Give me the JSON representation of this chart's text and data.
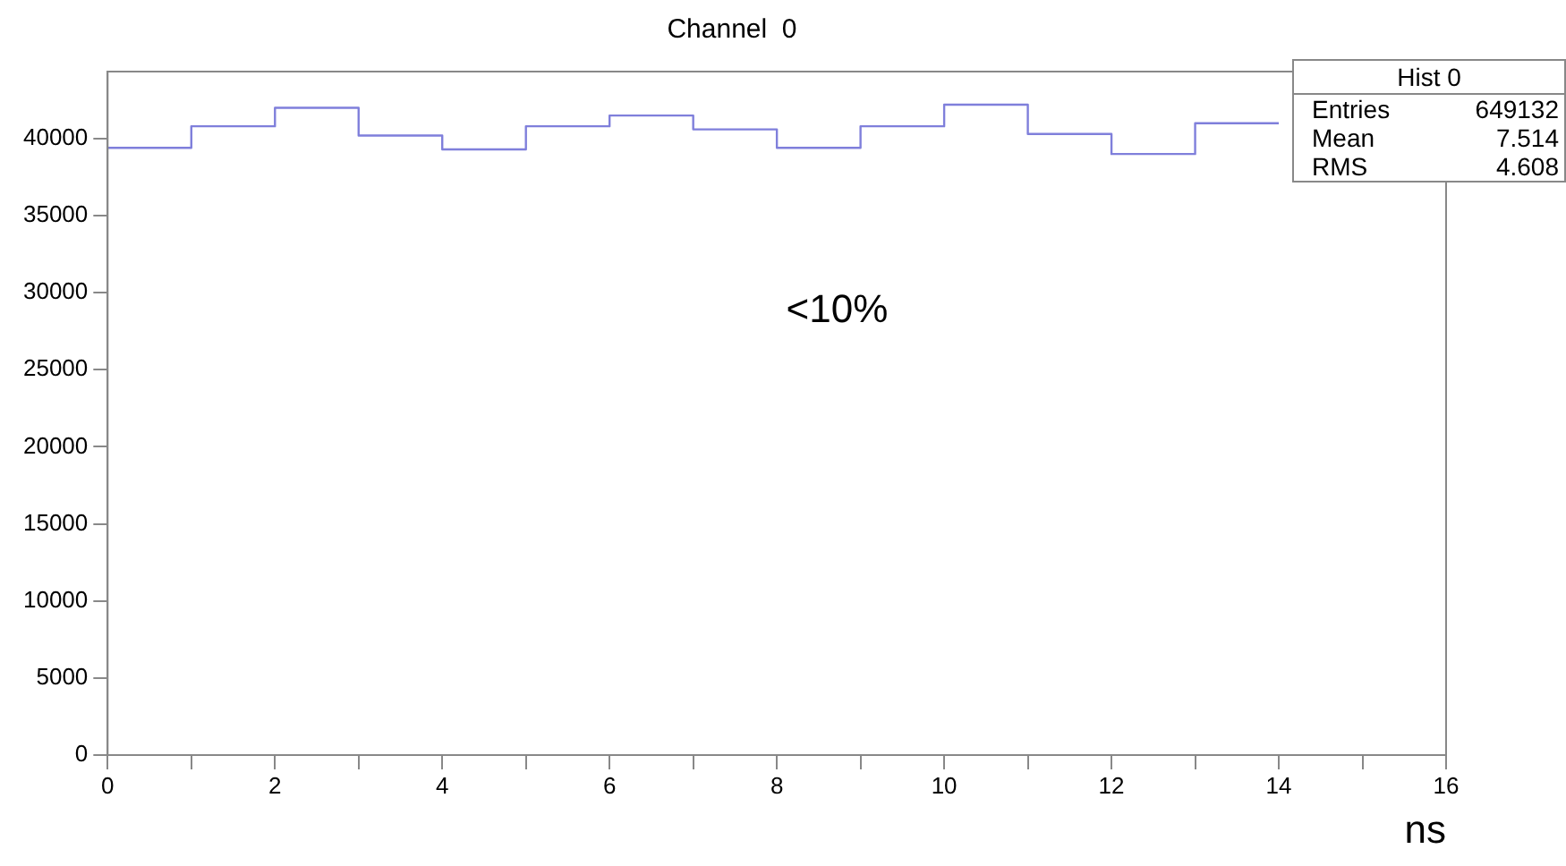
{
  "chart_data": {
    "type": "histogram",
    "title": "Channel  0",
    "xlabel": "ns",
    "bins": [
      0,
      1,
      2,
      3,
      4,
      5,
      6,
      7,
      8,
      9,
      10,
      11,
      12,
      13,
      14
    ],
    "values": [
      39400,
      40800,
      42000,
      40200,
      39300,
      40800,
      41500,
      40600,
      39400,
      40800,
      42200,
      40300,
      39000,
      41000
    ],
    "color": "#7f7fdb",
    "xlim": [
      0,
      16
    ],
    "xticks": [
      0,
      {
        "value": 1,
        "label": null
      },
      2,
      {
        "value": 3,
        "label": null
      },
      4,
      {
        "value": 5,
        "label": null
      },
      6,
      {
        "value": 7,
        "label": null
      },
      8,
      {
        "value": 9,
        "label": null
      },
      10,
      {
        "value": 11,
        "label": null
      },
      12,
      {
        "value": 13,
        "label": null
      },
      14,
      {
        "value": 15,
        "label": null
      },
      16
    ],
    "ylim": [
      0,
      44350
    ],
    "yticks": [
      0,
      5000,
      10000,
      15000,
      20000,
      25000,
      30000,
      35000,
      40000
    ],
    "grid": false,
    "legend": false,
    "annotations": [
      "<10%",
      "Hist 0",
      "Entries",
      "649132",
      "Mean",
      "7.514",
      "RMS",
      "4.608"
    ]
  }
}
